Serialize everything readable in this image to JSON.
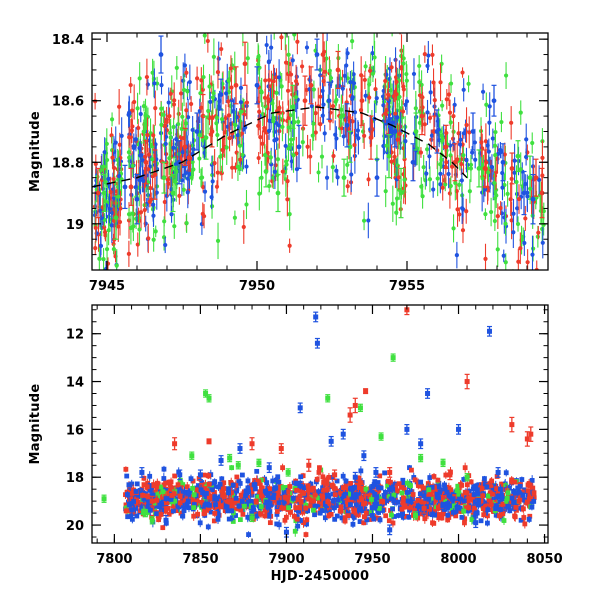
{
  "colors": {
    "red": "#ee3b2b",
    "green": "#3fe03f",
    "blue": "#1f53e0",
    "fit": "#000000"
  },
  "chart_data": [
    {
      "type": "scatter",
      "ylabel": "Magnitude",
      "xlabel": "",
      "xlim": [
        7944.5,
        7959.7
      ],
      "ylim": [
        19.15,
        18.38
      ],
      "y_inverted": true,
      "xticks": [
        7945,
        7950,
        7955
      ],
      "xtick_labels": [
        "7945",
        "7950",
        "7955"
      ],
      "yticks": [
        18.4,
        18.6,
        18.8,
        19
      ],
      "ytick_labels": [
        "18.4",
        "18.6",
        "18.8",
        "19"
      ],
      "error_bars": true,
      "fit_curve": {
        "style": "dashed",
        "color": "#000000",
        "x": [
          7944.5,
          7946,
          7947.5,
          7949,
          7950.5,
          7952,
          7953.5,
          7954.5,
          7955.7,
          7956.5,
          7957
        ],
        "y": [
          18.88,
          18.85,
          18.8,
          18.71,
          18.64,
          18.62,
          18.64,
          18.68,
          18.74,
          18.8,
          18.85
        ]
      },
      "series": [
        {
          "color": "red",
          "x": [
            7944.7,
            7945.8,
            7946.3,
            7946.6,
            7947.6,
            7948.2,
            7948.5,
            7949.3,
            7949.6,
            7951.6,
            7951.8,
            7952.2,
            7952.7,
            7953.5,
            7953.8,
            7955.5,
            7955.9,
            7956.3,
            7956.6,
            7957.6,
            7958.5,
            7959.3,
            7959.5
          ],
          "y": [
            18.9,
            18.88,
            18.8,
            18.84,
            18.75,
            18.65,
            18.7,
            18.55,
            18.48,
            18.6,
            18.55,
            18.45,
            18.5,
            18.6,
            18.72,
            18.65,
            18.7,
            18.75,
            18.8,
            18.82,
            18.82,
            18.85,
            18.9
          ],
          "yerr": [
            0.08,
            0.06,
            0.07,
            0.08,
            0.06,
            0.07,
            0.05,
            0.06,
            0.07,
            0.08,
            0.06,
            0.07,
            0.06,
            0.08,
            0.07,
            0.06,
            0.05,
            0.07,
            0.06,
            0.06,
            0.05,
            0.06,
            0.08
          ]
        },
        {
          "color": "green",
          "x": [
            7944.9,
            7945.3,
            7946.9,
            7947.2,
            7948.3,
            7950.3,
            7950.7,
            7951.2,
            7952.9,
            7953.1,
            7954.4,
            7954.8,
            7955.3,
            7957.4,
            7958.7,
            7959.1
          ],
          "y": [
            18.9,
            18.98,
            18.85,
            18.9,
            18.72,
            18.83,
            18.9,
            18.62,
            18.85,
            18.75,
            18.78,
            18.9,
            18.7,
            18.82,
            18.78,
            18.85
          ],
          "yerr": [
            0.06,
            0.07,
            0.05,
            0.06,
            0.07,
            0.05,
            0.06,
            0.07,
            0.06,
            0.05,
            0.07,
            0.08,
            0.06,
            0.06,
            0.05,
            0.07
          ]
        },
        {
          "color": "blue",
          "x": [
            7945.6,
            7946.0,
            7946.8,
            7947.4,
            7948.0,
            7948.8,
            7950.0,
            7951.4,
            7952.0,
            7952.4,
            7953.0,
            7954.0,
            7954.6,
            7955.2,
            7956.0,
            7957.2,
            7957.9,
            7958.2,
            7958.9,
            7959.2
          ],
          "y": [
            18.88,
            18.92,
            18.45,
            18.8,
            18.7,
            18.58,
            18.55,
            18.75,
            18.45,
            18.6,
            18.68,
            18.85,
            18.7,
            18.8,
            18.7,
            18.7,
            18.6,
            18.8,
            18.9,
            18.92
          ],
          "yerr": [
            0.07,
            0.08,
            0.06,
            0.07,
            0.06,
            0.05,
            0.06,
            0.07,
            0.05,
            0.06,
            0.07,
            0.06,
            0.05,
            0.06,
            0.07,
            0.06,
            0.05,
            0.06,
            0.07,
            0.08
          ]
        }
      ]
    },
    {
      "type": "scatter",
      "ylabel": "Magnitude",
      "xlabel": "HJD-2450000",
      "xlim": [
        7787,
        8052
      ],
      "ylim": [
        20.75,
        10.8
      ],
      "y_inverted": true,
      "xticks": [
        7800,
        7850,
        7900,
        7950,
        8000,
        8050
      ],
      "xtick_labels": [
        "7800",
        "7850",
        "7900",
        "7950",
        "8000",
        "8050"
      ],
      "yticks": [
        12,
        14,
        16,
        18,
        20
      ],
      "ytick_labels": [
        "12",
        "14",
        "16",
        "18",
        "20"
      ],
      "error_bars": true,
      "baseline_magnitude": 18.9,
      "series": [
        {
          "color": "blue",
          "x": [
            7816,
            7838,
            7862,
            7873,
            7890,
            7908,
            7917,
            7918,
            7926,
            7933,
            7945,
            7952,
            7970,
            7978,
            7982,
            8000,
            8018,
            8023,
            7830,
            7900,
            7960,
            8010,
            7850,
            7940
          ],
          "y": [
            17.8,
            17.9,
            17.3,
            16.8,
            17.6,
            15.1,
            11.3,
            12.4,
            16.5,
            16.2,
            17.1,
            17.8,
            16.0,
            16.6,
            14.5,
            16.0,
            11.9,
            17.8,
            19.8,
            20.3,
            20.2,
            19.9,
            17.9,
            18.0
          ],
          "yerr": [
            0.2,
            0.2,
            0.2,
            0.2,
            0.2,
            0.2,
            0.2,
            0.2,
            0.2,
            0.2,
            0.2,
            0.2,
            0.2,
            0.2,
            0.2,
            0.2,
            0.2,
            0.2,
            0.2,
            0.2,
            0.2,
            0.2,
            0.2,
            0.2
          ]
        },
        {
          "color": "green",
          "x": [
            7794,
            7818,
            7845,
            7853,
            7855,
            7867,
            7872,
            7884,
            7901,
            7924,
            7943,
            7955,
            7962,
            7978,
            7991,
            8005,
            7822,
            7880,
            7975
          ],
          "y": [
            18.9,
            19.5,
            17.1,
            14.5,
            14.7,
            17.2,
            17.5,
            17.4,
            17.8,
            14.7,
            15.1,
            16.3,
            13.0,
            17.2,
            17.4,
            18.0,
            19.8,
            19.7,
            19.6
          ],
          "yerr": [
            0.15,
            0.15,
            0.15,
            0.15,
            0.15,
            0.15,
            0.15,
            0.15,
            0.15,
            0.15,
            0.15,
            0.15,
            0.15,
            0.15,
            0.15,
            0.15,
            0.15,
            0.15,
            0.15
          ]
        },
        {
          "color": "red",
          "x": [
            7835,
            7855,
            7880,
            7897,
            7913,
            7928,
            7937,
            7940,
            7946,
            7960,
            7970,
            7995,
            8005,
            8031,
            8040,
            8042,
            7822,
            7980
          ],
          "y": [
            16.6,
            16.5,
            16.6,
            16.8,
            17.5,
            17.9,
            15.4,
            15.0,
            14.4,
            17.8,
            11.0,
            17.9,
            14.0,
            15.8,
            16.4,
            16.2,
            19.0,
            19.3
          ],
          "yerr": [
            0.25,
            0.1,
            0.25,
            0.2,
            0.25,
            0.2,
            0.3,
            0.3,
            0.1,
            0.2,
            0.2,
            0.2,
            0.3,
            0.3,
            0.3,
            0.3,
            0.2,
            0.2
          ]
        }
      ]
    }
  ]
}
